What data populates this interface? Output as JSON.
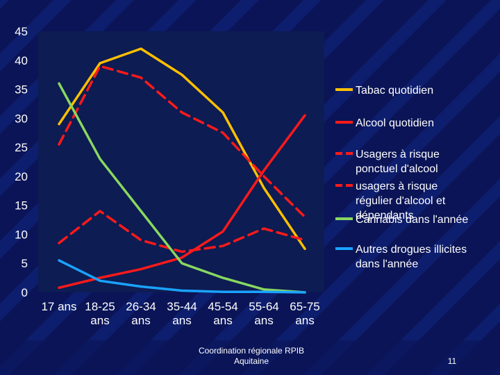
{
  "slide": {
    "footer_line1": "Coordination régionale RPIB",
    "footer_line2": "Aquitaine",
    "page_number": "11"
  },
  "colors": {
    "background": "#0a1456",
    "plot_area": "#0d1c52",
    "axis_text": "#ffffff",
    "legend_text": "#ffffff"
  },
  "chart_data": {
    "type": "line",
    "title": "",
    "xlabel": "",
    "ylabel": "",
    "categories": [
      "17 ans",
      "18-25 ans",
      "26-34 ans",
      "35-44 ans",
      "45-54 ans",
      "55-64 ans",
      "65-75 ans"
    ],
    "ylim": [
      0,
      45
    ],
    "yticks": [
      0,
      5,
      10,
      15,
      20,
      25,
      30,
      35,
      40,
      45
    ],
    "grid": false,
    "legend_position": "right",
    "series": [
      {
        "name": "Tabac quotidien",
        "color": "#ffc000",
        "dashed": false,
        "values": [
          29,
          39.5,
          42,
          37.5,
          31,
          18,
          7.5
        ]
      },
      {
        "name": "Alcool quotidien",
        "color": "#ff1a1a",
        "dashed": false,
        "values": [
          0.8,
          2.5,
          4,
          6,
          10.5,
          21,
          30.5
        ]
      },
      {
        "name": "Usagers à risque ponctuel d'alcool",
        "color": "#ff1a1a",
        "dashed": true,
        "values": [
          25.5,
          39,
          37,
          31,
          27.5,
          20,
          13
        ]
      },
      {
        "name": "usagers à risque régulier d'alcool et dépendants",
        "color": "#ff1a1a",
        "dashed": true,
        "values": [
          8.5,
          14,
          9,
          7,
          8,
          11,
          9
        ]
      },
      {
        "name": "Cannabis dans l'année",
        "color": "#88d860",
        "dashed": false,
        "values": [
          36,
          23,
          14,
          5,
          2.5,
          0.5,
          0
        ]
      },
      {
        "name": "Autres drogues illicites dans l'année",
        "color": "#1aa3ff",
        "dashed": false,
        "values": [
          5.5,
          2,
          1,
          0.3,
          0.1,
          0.1,
          0
        ]
      }
    ]
  }
}
